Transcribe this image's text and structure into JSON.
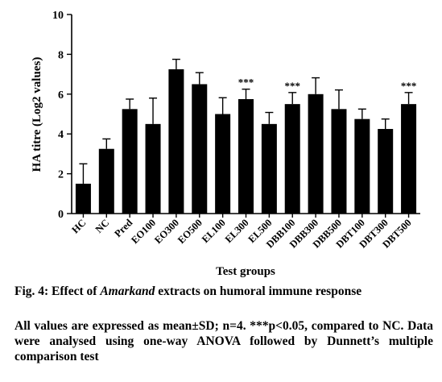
{
  "chart_data": {
    "type": "bar",
    "xlabel": "Test groups",
    "ylabel": "HA titre (Log2 values)",
    "ylim": [
      0,
      10
    ],
    "yticks": [
      "0",
      "2",
      "4",
      "6",
      "8",
      "10"
    ],
    "grid": false,
    "categories": [
      "HC",
      "NC",
      "Pred",
      "EO100",
      "EO300",
      "EO500",
      "EL100",
      "EL300",
      "EL500",
      "DBB100",
      "DBB300",
      "DBB500",
      "DBT100",
      "DBT300",
      "DBT500"
    ],
    "values": [
      1.5,
      3.25,
      5.25,
      4.5,
      7.25,
      6.5,
      5.0,
      5.75,
      4.5,
      5.5,
      6.0,
      5.25,
      4.75,
      4.25,
      5.5
    ],
    "error": [
      1.0,
      0.5,
      0.5,
      1.3,
      0.5,
      0.58,
      0.82,
      0.5,
      0.58,
      0.58,
      0.82,
      0.96,
      0.5,
      0.5,
      0.58
    ],
    "annotations": [
      "",
      "",
      "",
      "",
      "",
      "",
      "",
      "***",
      "",
      "***",
      "",
      "",
      "",
      "",
      "***"
    ],
    "bar_color": "#000000"
  },
  "caption": {
    "fig_label": "Fig. 4: Effect of ",
    "fig_italic": "Amarkand",
    "fig_rest": " extracts on humoral immune response",
    "notes": "All values are expressed as mean±SD; n=4. ***p<0.05, compared to NC. Data were analysed using one-way ANOVA followed by Dunnett’s multiple comparison test"
  }
}
